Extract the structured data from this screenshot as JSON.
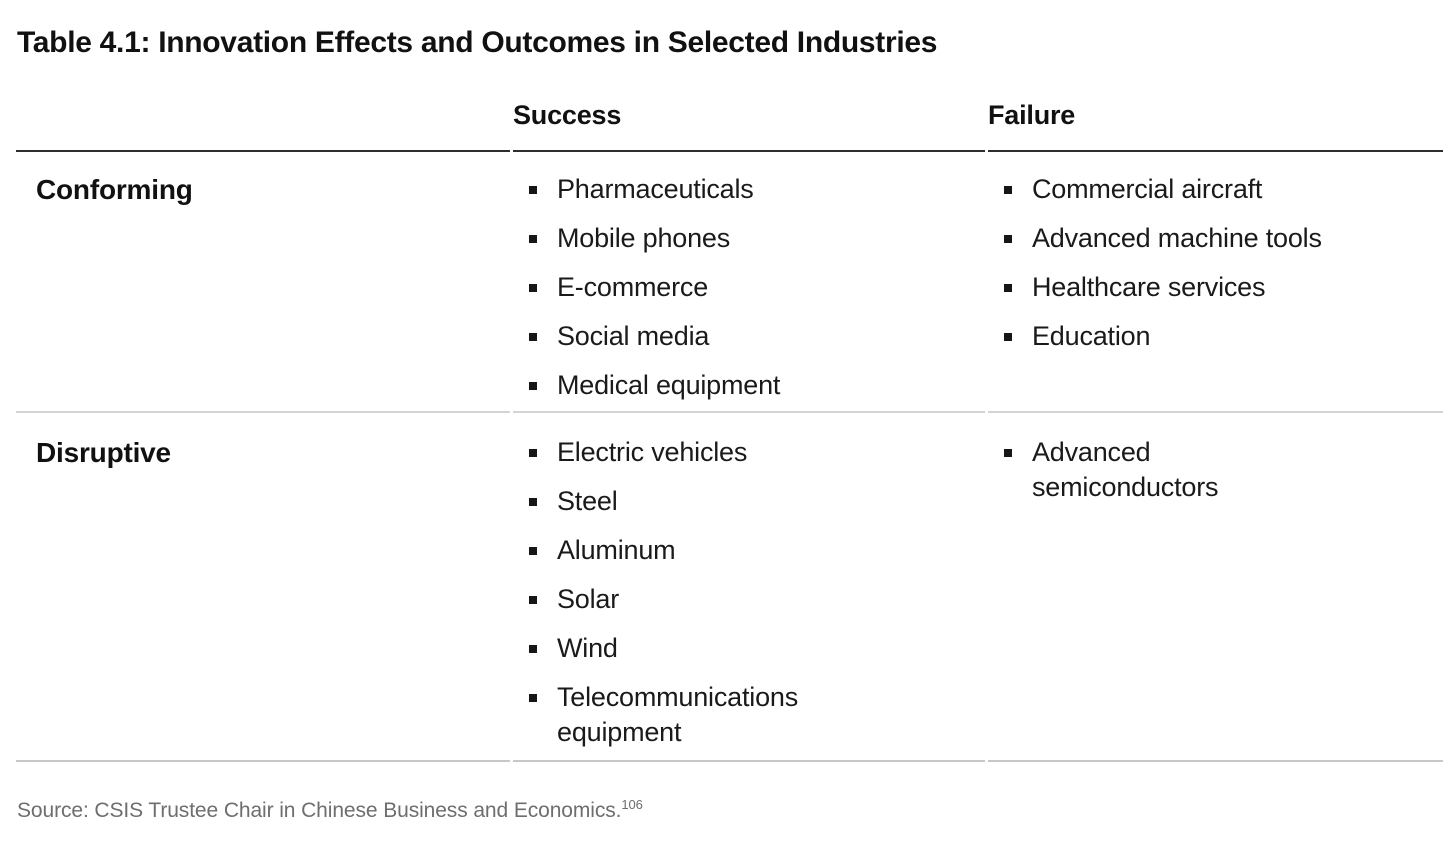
{
  "title": "Table 4.1: Innovation Effects and Outcomes in Selected Industries",
  "table": {
    "column_headers": {
      "row_label": "",
      "success": "Success",
      "failure": "Failure"
    },
    "rows": [
      {
        "label": "Conforming",
        "success": [
          "Pharmaceuticals",
          "Mobile phones",
          "E-commerce",
          "Social media",
          "Medical equipment"
        ],
        "failure": [
          "Commercial aircraft",
          "Advanced machine tools",
          "Healthcare services",
          "Education"
        ]
      },
      {
        "label": "Disruptive",
        "success": [
          "Electric vehicles",
          "Steel",
          "Aluminum",
          "Solar",
          "Wind",
          "Telecommunications\nequipment"
        ],
        "failure": [
          "Advanced\nsemiconductors"
        ]
      }
    ]
  },
  "source": {
    "text": "Source: CSIS Trustee Chair in Chinese Business and Economics.",
    "footnote_marker": "106"
  },
  "colors": {
    "background": "#ffffff",
    "text": "#1a1a1a",
    "heading_text": "#111111",
    "source_text": "#6e6e6e",
    "header_rule": "#2e2e2e",
    "row_rule": "#d4d4d4",
    "bottom_rule": "#c8c8c8",
    "bullet": "#161616"
  }
}
